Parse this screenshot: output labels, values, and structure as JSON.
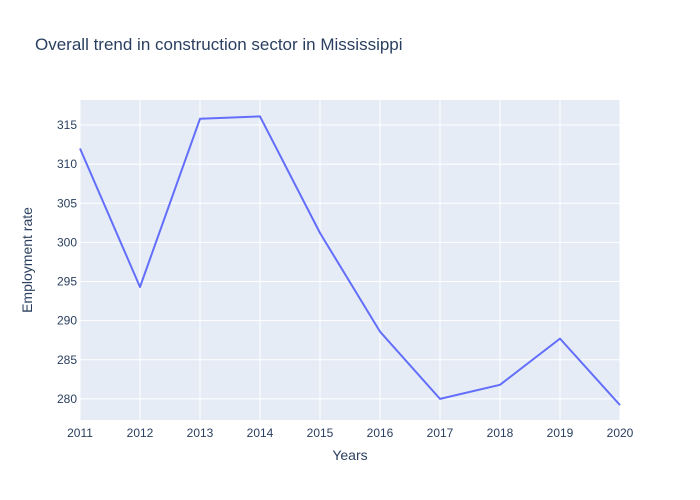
{
  "chart_data": {
    "type": "line",
    "title": "Overall trend in construction sector in Mississippi",
    "xlabel": "Years",
    "ylabel": "Employment rate",
    "x": [
      2011,
      2012,
      2013,
      2014,
      2015,
      2016,
      2017,
      2018,
      2019,
      2020
    ],
    "series": [
      {
        "name": "",
        "values": [
          312.0,
          294.3,
          315.8,
          316.1,
          301.2,
          288.6,
          280.0,
          281.8,
          287.7,
          279.2
        ],
        "color": "#636efa"
      }
    ],
    "xlim": [
      2011,
      2020
    ],
    "ylim": [
      277.3,
      318.2
    ],
    "yticks": [
      280,
      285,
      290,
      295,
      300,
      305,
      310,
      315
    ],
    "xticks": [
      2011,
      2012,
      2013,
      2014,
      2015,
      2016,
      2017,
      2018,
      2019,
      2020
    ],
    "grid": true,
    "plot_bgcolor": "#e5ecf6",
    "gridcolor": "#ffffff"
  }
}
